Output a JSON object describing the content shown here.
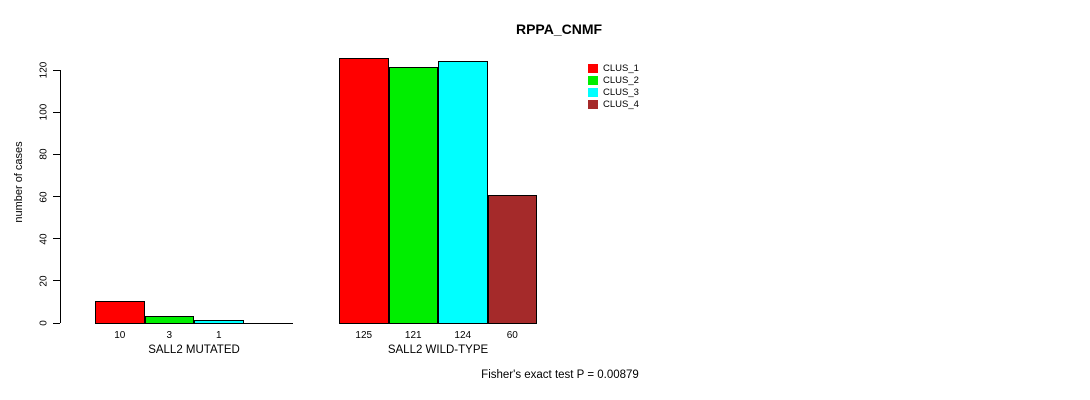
{
  "chart_data": {
    "type": "bar",
    "title": "RPPA_CNMF",
    "ylabel": "number of cases",
    "ylim": [
      0,
      120
    ],
    "yticks": [
      0,
      20,
      40,
      60,
      80,
      100,
      120
    ],
    "categories": [
      "SALL2 MUTATED",
      "SALL2 WILD-TYPE"
    ],
    "series": [
      {
        "name": "CLUS_1",
        "color": "#ff0000",
        "values": [
          10,
          125
        ]
      },
      {
        "name": "CLUS_2",
        "color": "#00ee00",
        "values": [
          3,
          121
        ]
      },
      {
        "name": "CLUS_3",
        "color": "#00ffff",
        "values": [
          1,
          124
        ]
      },
      {
        "name": "CLUS_4",
        "color": "#a52a2a",
        "values": [
          0,
          60
        ]
      }
    ],
    "bar_labels": [
      [
        "10",
        "3",
        "1",
        ""
      ],
      [
        "125",
        "121",
        "124",
        "60"
      ]
    ],
    "legend_position": "top-right",
    "grid": false,
    "annotation": "Fisher's exact test P = 0.00879"
  },
  "colors": {
    "axis": "#000000",
    "background": "#ffffff"
  }
}
